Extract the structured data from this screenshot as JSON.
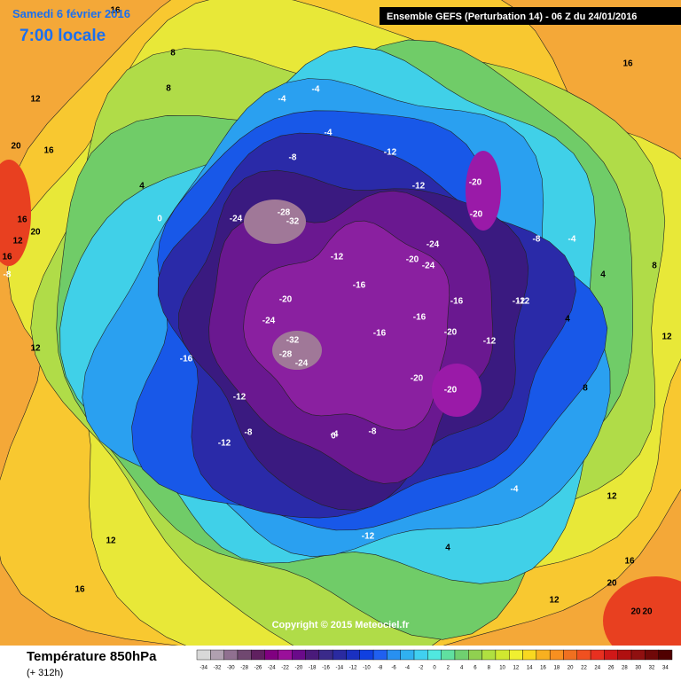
{
  "header": {
    "date": "Samedi 6 février 2016",
    "time": "7:00 locale",
    "model": "Ensemble GEFS  (Perturbation 14)  - 06 Z du 24/01/2016"
  },
  "footer": {
    "title": "Température 850hPa",
    "lead": "(+ 312h)",
    "copyright": "Copyright © 2015 Meteociel.fr"
  },
  "scale": {
    "labels": [
      -34,
      -32,
      -30,
      -28,
      -26,
      -24,
      -22,
      -20,
      -18,
      -16,
      -14,
      -12,
      -10,
      -8,
      -6,
      -4,
      -2,
      0,
      2,
      4,
      6,
      8,
      10,
      12,
      14,
      16,
      18,
      20,
      22,
      24,
      26,
      28,
      30,
      32,
      34
    ],
    "colors": [
      "#d8d8d8",
      "#b0a0b0",
      "#907090",
      "#704870",
      "#602060",
      "#800080",
      "#9a109a",
      "#6a0a8a",
      "#4a1a7a",
      "#3a2a8a",
      "#2a2aa0",
      "#1a30c0",
      "#1040e0",
      "#2060f0",
      "#2890f0",
      "#30b0f0",
      "#40d0f0",
      "#50e8e0",
      "#60e0a0",
      "#70d070",
      "#90d050",
      "#b0e040",
      "#d0e830",
      "#f0f030",
      "#f8d820",
      "#f8b020",
      "#f89020",
      "#f07020",
      "#f05020",
      "#e83020",
      "#d01818",
      "#b01010",
      "#901010",
      "#700808",
      "#500000"
    ]
  },
  "contour_labels": [
    16,
    12,
    16,
    12,
    20,
    16,
    20,
    16,
    8,
    4,
    0,
    -4,
    -4,
    -4,
    -8,
    -12,
    -12,
    -20,
    -24,
    -28,
    -32,
    -20,
    -24,
    -12,
    -20,
    -24,
    -16,
    -20,
    -24,
    -20,
    -16,
    -12,
    -16,
    -32,
    -28,
    -24,
    -16,
    -12,
    -8,
    -4,
    0,
    -12,
    -8,
    -4,
    4,
    -12,
    -20,
    -20,
    -16,
    -12,
    -12,
    -4,
    4,
    -8,
    8,
    12,
    12,
    16,
    16,
    20,
    20,
    12,
    12,
    8,
    4,
    -8,
    8,
    12,
    16,
    20
  ]
}
